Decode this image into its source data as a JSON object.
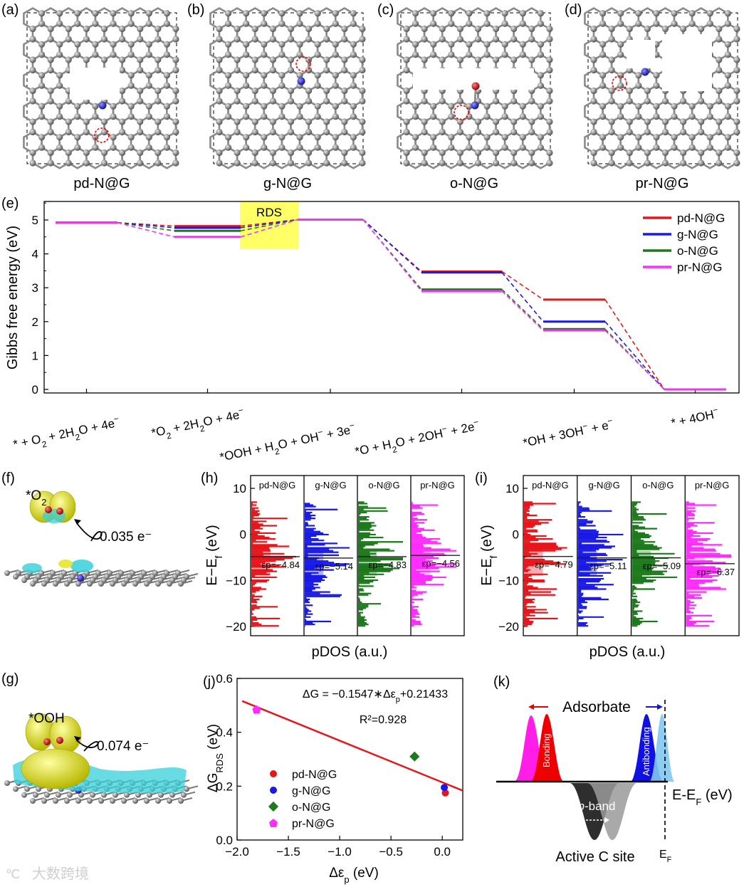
{
  "panel_labels": {
    "a": "(a)",
    "b": "(b)",
    "c": "(c)",
    "d": "(d)",
    "e": "(e)",
    "f": "(f)",
    "g": "(g)",
    "h": "(h)",
    "i": "(i)",
    "j": "(j)",
    "k": "(k)"
  },
  "structures": [
    "pd-N@G",
    "g-N@G",
    "o-N@G",
    "pr-N@G"
  ],
  "colors": {
    "pd": "#e8151b",
    "g": "#1a1ae6",
    "o": "#1c7a1c",
    "pr": "#ff2cff",
    "carbon": "#8a8a8a",
    "nitrogen": "#2020d0",
    "oxygen": "#d01010",
    "highlight": "#ffff66",
    "cyan": "#36d0d8",
    "yellow": "#e5e52a"
  },
  "chart_data": [
    {
      "type": "line",
      "panel": "e",
      "ylabel": "Gibbs free energy (eV)",
      "ylim": [
        -0.1,
        5.5
      ],
      "yticks": [
        "0",
        "1",
        "2",
        "3",
        "4",
        "5"
      ],
      "categories": [
        "* + O2 + 2H2O + 4e⁻",
        "*O2 + 2H2O + 4e⁻",
        "*OOH + H2O + OH⁻ + 3e⁻",
        "*O + H2O + 2OH⁻ + 2e⁻",
        "*OH + 3OH⁻ + e⁻",
        "* + 4OH⁻"
      ],
      "series": [
        {
          "name": "pd-N@G",
          "values": [
            4.92,
            4.82,
            5.01,
            3.48,
            2.65,
            0
          ]
        },
        {
          "name": "g-N@G",
          "values": [
            4.92,
            4.77,
            5.01,
            3.45,
            2.0,
            0
          ]
        },
        {
          "name": "o-N@G",
          "values": [
            4.92,
            4.68,
            5.01,
            2.95,
            1.78,
            0
          ]
        },
        {
          "name": "pr-N@G",
          "values": [
            4.92,
            4.5,
            5.01,
            2.9,
            1.74,
            0
          ]
        }
      ],
      "annotation": "RDS",
      "legend": "top-right"
    },
    {
      "type": "area",
      "panel": "h",
      "ylabel": "E−Ef (eV)",
      "xlabel": "pDOS (a.u.)",
      "ylim": [
        -22,
        12
      ],
      "yticks": [
        "10",
        "0",
        "−10",
        "−20"
      ],
      "subplots": [
        {
          "name": "pd-N@G",
          "center": -4.84,
          "label": "εp=−4.84"
        },
        {
          "name": "g-N@G",
          "center": -5.14,
          "label": "εp=−5.14"
        },
        {
          "name": "o-N@G",
          "center": -4.83,
          "label": "εp=−4.83"
        },
        {
          "name": "pr-N@G",
          "center": -4.56,
          "label": "εp=−4.56"
        }
      ]
    },
    {
      "type": "area",
      "panel": "i",
      "ylabel": "E−Ef (eV)",
      "xlabel": "pDOS (a.u.)",
      "ylim": [
        -22,
        12
      ],
      "yticks": [
        "10",
        "0",
        "−10",
        "−20"
      ],
      "subplots": [
        {
          "name": "pd-N@G",
          "center": -4.79,
          "label": "εp=−4.79"
        },
        {
          "name": "g-N@G",
          "center": -5.11,
          "label": "εp=−5.11"
        },
        {
          "name": "o-N@G",
          "center": -5.09,
          "label": "εp=−5.09"
        },
        {
          "name": "pr-N@G",
          "center": -6.37,
          "label": "εp=−6.37"
        }
      ]
    },
    {
      "type": "scatter",
      "panel": "j",
      "xlabel": "Δεp (eV)",
      "ylabel": "ΔGRDS (eV)",
      "xlim": [
        -2.0,
        0.2
      ],
      "ylim": [
        0.0,
        0.6
      ],
      "xticks": [
        "−2.0",
        "−1.5",
        "−1.0",
        "−0.5",
        "0.0"
      ],
      "yticks": [
        "0.0",
        "0.2",
        "0.4",
        "0.6"
      ],
      "series": [
        {
          "name": "pd-N@G",
          "x": 0.03,
          "y": 0.175
        },
        {
          "name": "g-N@G",
          "x": 0.02,
          "y": 0.195
        },
        {
          "name": "o-N@G",
          "x": -0.27,
          "y": 0.31
        },
        {
          "name": "pr-N@G",
          "x": -1.81,
          "y": 0.485
        }
      ],
      "fit": {
        "slope": -0.1547,
        "intercept": 0.21433,
        "equation": "ΔG = −0.1547∗Δεp+0.21433",
        "r2": "R²=0.928"
      },
      "legend": "bottom-left"
    }
  ],
  "panel_f": {
    "species": "*O2",
    "charge": "0.035 e⁻"
  },
  "panel_g": {
    "species": "*OOH",
    "charge": "0.074 e⁻"
  },
  "panel_k": {
    "adsorbate": "Adsorbate",
    "bonding": "Bonding",
    "antibonding": "Antibonding",
    "pband": "p-band",
    "site": "Active C site",
    "axis": "E-EF (eV)",
    "ef": "EF"
  },
  "watermark": "大数跨境"
}
